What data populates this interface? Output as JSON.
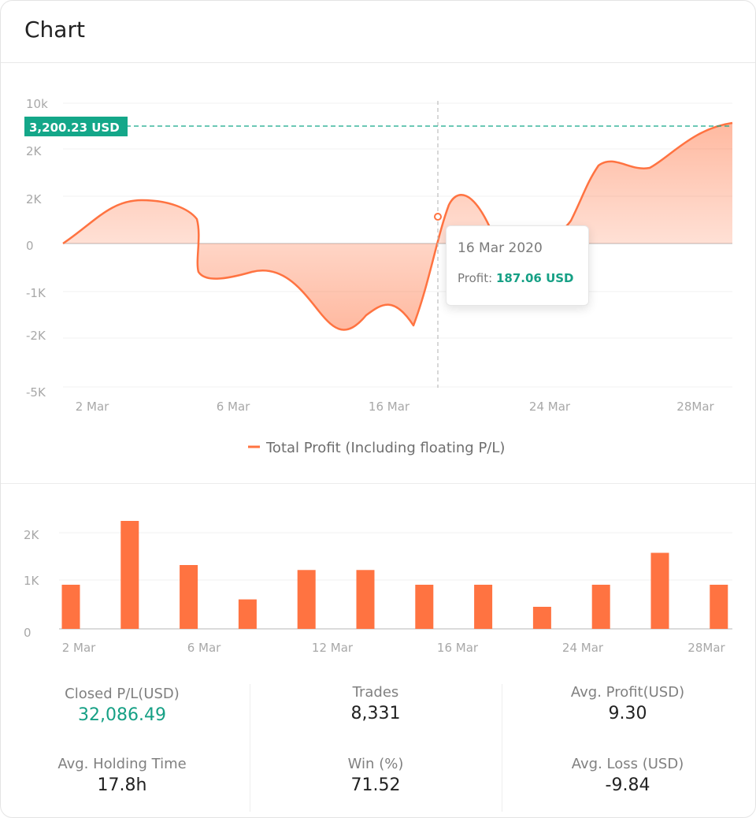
{
  "header": {
    "title": "Chart"
  },
  "chart_data": [
    {
      "type": "line",
      "title": "",
      "series": [
        {
          "name": "Total Profit (Including floating P/L)"
        }
      ],
      "x_ticks": [
        "2 Mar",
        "6 Mar",
        "16 Mar",
        "24 Mar",
        "28Mar"
      ],
      "y_ticks": [
        "10k",
        "2K",
        "2K",
        "0",
        "-1K",
        "-2K",
        "-5K"
      ],
      "reference_line": {
        "label": "3,200.23 USD"
      },
      "tooltip": {
        "date": "16 Mar 2020",
        "label": "Profit:",
        "value": "187.06 USD"
      },
      "colors": {
        "line": "#ff7341",
        "reference": "#14a789",
        "fill": "#ffd0bd"
      }
    },
    {
      "type": "bar",
      "x_ticks": [
        "2 Mar",
        "6 Mar",
        "12 Mar",
        "16 Mar",
        "24 Mar",
        "28Mar"
      ],
      "y_ticks": [
        "2K",
        "1K",
        "0"
      ],
      "ylim": [
        0,
        2200
      ],
      "values": [
        900,
        2200,
        1300,
        600,
        1200,
        1200,
        900,
        900,
        450,
        900,
        1550,
        900
      ],
      "colors": {
        "bar": "#ff7341"
      }
    }
  ],
  "stats": [
    {
      "label": "Closed P/L(USD)",
      "value": "32,086.49",
      "positive": true
    },
    {
      "label": "Trades",
      "value": "8,331"
    },
    {
      "label": "Avg. Profit(USD)",
      "value": "9.30"
    },
    {
      "label": "Avg. Holding Time",
      "value": "17.8h"
    },
    {
      "label": "Win (%)",
      "value": "71.52"
    },
    {
      "label": "Avg. Loss (USD)",
      "value": "-9.84"
    }
  ]
}
